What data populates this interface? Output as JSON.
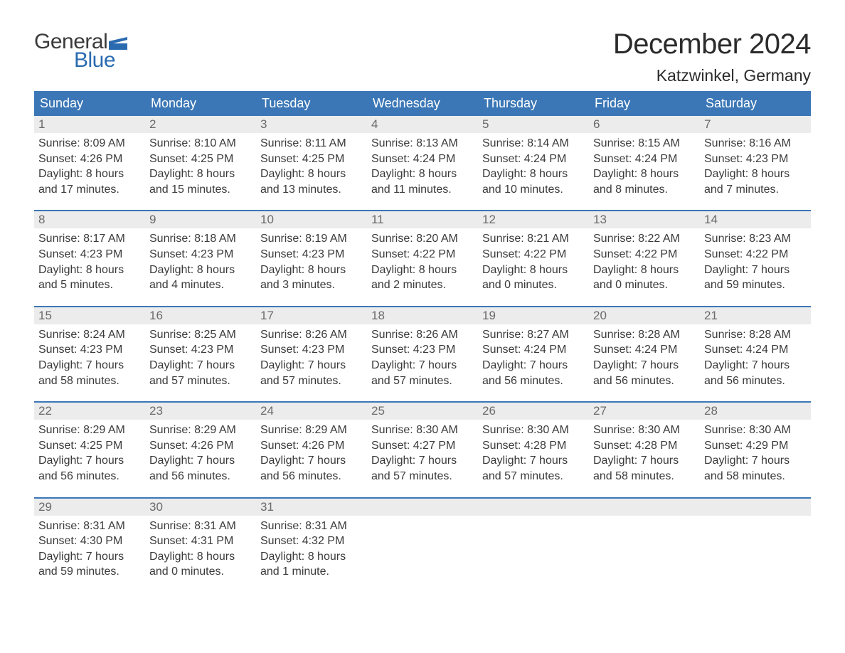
{
  "brand": {
    "word1": "General",
    "word2": "Blue",
    "flag_color": "#2a6bb0",
    "text_color1": "#3b3b3b",
    "text_color2": "#2a6bb0"
  },
  "title": "December 2024",
  "location": "Katzwinkel, Germany",
  "colors": {
    "header_bg": "#3b77b6",
    "header_text": "#ffffff",
    "daynum_bg": "#ececec",
    "daynum_text": "#6a6a6a",
    "body_text": "#3a3a3a",
    "week_border": "#3b77b6",
    "page_bg": "#ffffff"
  },
  "day_headers": [
    "Sunday",
    "Monday",
    "Tuesday",
    "Wednesday",
    "Thursday",
    "Friday",
    "Saturday"
  ],
  "weeks": [
    [
      {
        "n": "1",
        "sunrise": "Sunrise: 8:09 AM",
        "sunset": "Sunset: 4:26 PM",
        "daylight1": "Daylight: 8 hours",
        "daylight2": "and 17 minutes."
      },
      {
        "n": "2",
        "sunrise": "Sunrise: 8:10 AM",
        "sunset": "Sunset: 4:25 PM",
        "daylight1": "Daylight: 8 hours",
        "daylight2": "and 15 minutes."
      },
      {
        "n": "3",
        "sunrise": "Sunrise: 8:11 AM",
        "sunset": "Sunset: 4:25 PM",
        "daylight1": "Daylight: 8 hours",
        "daylight2": "and 13 minutes."
      },
      {
        "n": "4",
        "sunrise": "Sunrise: 8:13 AM",
        "sunset": "Sunset: 4:24 PM",
        "daylight1": "Daylight: 8 hours",
        "daylight2": "and 11 minutes."
      },
      {
        "n": "5",
        "sunrise": "Sunrise: 8:14 AM",
        "sunset": "Sunset: 4:24 PM",
        "daylight1": "Daylight: 8 hours",
        "daylight2": "and 10 minutes."
      },
      {
        "n": "6",
        "sunrise": "Sunrise: 8:15 AM",
        "sunset": "Sunset: 4:24 PM",
        "daylight1": "Daylight: 8 hours",
        "daylight2": "and 8 minutes."
      },
      {
        "n": "7",
        "sunrise": "Sunrise: 8:16 AM",
        "sunset": "Sunset: 4:23 PM",
        "daylight1": "Daylight: 8 hours",
        "daylight2": "and 7 minutes."
      }
    ],
    [
      {
        "n": "8",
        "sunrise": "Sunrise: 8:17 AM",
        "sunset": "Sunset: 4:23 PM",
        "daylight1": "Daylight: 8 hours",
        "daylight2": "and 5 minutes."
      },
      {
        "n": "9",
        "sunrise": "Sunrise: 8:18 AM",
        "sunset": "Sunset: 4:23 PM",
        "daylight1": "Daylight: 8 hours",
        "daylight2": "and 4 minutes."
      },
      {
        "n": "10",
        "sunrise": "Sunrise: 8:19 AM",
        "sunset": "Sunset: 4:23 PM",
        "daylight1": "Daylight: 8 hours",
        "daylight2": "and 3 minutes."
      },
      {
        "n": "11",
        "sunrise": "Sunrise: 8:20 AM",
        "sunset": "Sunset: 4:22 PM",
        "daylight1": "Daylight: 8 hours",
        "daylight2": "and 2 minutes."
      },
      {
        "n": "12",
        "sunrise": "Sunrise: 8:21 AM",
        "sunset": "Sunset: 4:22 PM",
        "daylight1": "Daylight: 8 hours",
        "daylight2": "and 0 minutes."
      },
      {
        "n": "13",
        "sunrise": "Sunrise: 8:22 AM",
        "sunset": "Sunset: 4:22 PM",
        "daylight1": "Daylight: 8 hours",
        "daylight2": "and 0 minutes."
      },
      {
        "n": "14",
        "sunrise": "Sunrise: 8:23 AM",
        "sunset": "Sunset: 4:22 PM",
        "daylight1": "Daylight: 7 hours",
        "daylight2": "and 59 minutes."
      }
    ],
    [
      {
        "n": "15",
        "sunrise": "Sunrise: 8:24 AM",
        "sunset": "Sunset: 4:23 PM",
        "daylight1": "Daylight: 7 hours",
        "daylight2": "and 58 minutes."
      },
      {
        "n": "16",
        "sunrise": "Sunrise: 8:25 AM",
        "sunset": "Sunset: 4:23 PM",
        "daylight1": "Daylight: 7 hours",
        "daylight2": "and 57 minutes."
      },
      {
        "n": "17",
        "sunrise": "Sunrise: 8:26 AM",
        "sunset": "Sunset: 4:23 PM",
        "daylight1": "Daylight: 7 hours",
        "daylight2": "and 57 minutes."
      },
      {
        "n": "18",
        "sunrise": "Sunrise: 8:26 AM",
        "sunset": "Sunset: 4:23 PM",
        "daylight1": "Daylight: 7 hours",
        "daylight2": "and 57 minutes."
      },
      {
        "n": "19",
        "sunrise": "Sunrise: 8:27 AM",
        "sunset": "Sunset: 4:24 PM",
        "daylight1": "Daylight: 7 hours",
        "daylight2": "and 56 minutes."
      },
      {
        "n": "20",
        "sunrise": "Sunrise: 8:28 AM",
        "sunset": "Sunset: 4:24 PM",
        "daylight1": "Daylight: 7 hours",
        "daylight2": "and 56 minutes."
      },
      {
        "n": "21",
        "sunrise": "Sunrise: 8:28 AM",
        "sunset": "Sunset: 4:24 PM",
        "daylight1": "Daylight: 7 hours",
        "daylight2": "and 56 minutes."
      }
    ],
    [
      {
        "n": "22",
        "sunrise": "Sunrise: 8:29 AM",
        "sunset": "Sunset: 4:25 PM",
        "daylight1": "Daylight: 7 hours",
        "daylight2": "and 56 minutes."
      },
      {
        "n": "23",
        "sunrise": "Sunrise: 8:29 AM",
        "sunset": "Sunset: 4:26 PM",
        "daylight1": "Daylight: 7 hours",
        "daylight2": "and 56 minutes."
      },
      {
        "n": "24",
        "sunrise": "Sunrise: 8:29 AM",
        "sunset": "Sunset: 4:26 PM",
        "daylight1": "Daylight: 7 hours",
        "daylight2": "and 56 minutes."
      },
      {
        "n": "25",
        "sunrise": "Sunrise: 8:30 AM",
        "sunset": "Sunset: 4:27 PM",
        "daylight1": "Daylight: 7 hours",
        "daylight2": "and 57 minutes."
      },
      {
        "n": "26",
        "sunrise": "Sunrise: 8:30 AM",
        "sunset": "Sunset: 4:28 PM",
        "daylight1": "Daylight: 7 hours",
        "daylight2": "and 57 minutes."
      },
      {
        "n": "27",
        "sunrise": "Sunrise: 8:30 AM",
        "sunset": "Sunset: 4:28 PM",
        "daylight1": "Daylight: 7 hours",
        "daylight2": "and 58 minutes."
      },
      {
        "n": "28",
        "sunrise": "Sunrise: 8:30 AM",
        "sunset": "Sunset: 4:29 PM",
        "daylight1": "Daylight: 7 hours",
        "daylight2": "and 58 minutes."
      }
    ],
    [
      {
        "n": "29",
        "sunrise": "Sunrise: 8:31 AM",
        "sunset": "Sunset: 4:30 PM",
        "daylight1": "Daylight: 7 hours",
        "daylight2": "and 59 minutes."
      },
      {
        "n": "30",
        "sunrise": "Sunrise: 8:31 AM",
        "sunset": "Sunset: 4:31 PM",
        "daylight1": "Daylight: 8 hours",
        "daylight2": "and 0 minutes."
      },
      {
        "n": "31",
        "sunrise": "Sunrise: 8:31 AM",
        "sunset": "Sunset: 4:32 PM",
        "daylight1": "Daylight: 8 hours",
        "daylight2": "and 1 minute."
      },
      {
        "empty": true
      },
      {
        "empty": true
      },
      {
        "empty": true
      },
      {
        "empty": true
      }
    ]
  ]
}
